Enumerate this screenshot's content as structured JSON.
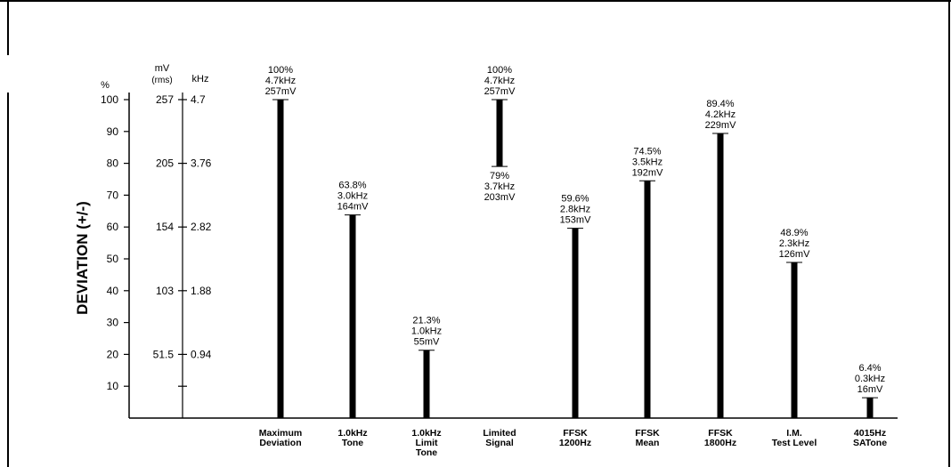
{
  "chart_data": {
    "type": "bar",
    "ylabel": "DEVIATION (+/-)",
    "ylim": [
      0,
      100
    ],
    "y_ticks": [
      10,
      20,
      30,
      40,
      50,
      60,
      70,
      80,
      90,
      100
    ],
    "axis_headers": {
      "percent": "%",
      "mv": "mV",
      "mv_sub": "(rms)",
      "khz": "kHz"
    },
    "secondary_scales": [
      {
        "pct": 100,
        "mv": "257",
        "khz": "4.7"
      },
      {
        "pct": 80,
        "mv": "205",
        "khz": "3.76"
      },
      {
        "pct": 60,
        "mv": "154",
        "khz": "2.82"
      },
      {
        "pct": 40,
        "mv": "103",
        "khz": "1.88"
      },
      {
        "pct": 20,
        "mv": "51.5",
        "khz": "0.94"
      }
    ],
    "extra_scale_ticks": [
      10
    ],
    "bars": [
      {
        "category": [
          "Maximum",
          "Deviation"
        ],
        "top": 100,
        "bottom": 0,
        "label_top": [
          "100%",
          "4.7kHz",
          "257mV"
        ]
      },
      {
        "category": [
          "1.0kHz",
          "Tone"
        ],
        "top": 63.8,
        "bottom": 0,
        "label_top": [
          "63.8%",
          "3.0kHz",
          "164mV"
        ]
      },
      {
        "category": [
          "1.0kHz",
          "Limit",
          "Tone"
        ],
        "top": 21.3,
        "bottom": 0,
        "label_top": [
          "21.3%",
          "1.0kHz",
          "55mV"
        ]
      },
      {
        "category": [
          "Limited",
          "Signal"
        ],
        "top": 100,
        "bottom": 79,
        "label_top": [
          "100%",
          "4.7kHz",
          "257mV"
        ],
        "label_bottom": [
          "79%",
          "3.7kHz",
          "203mV"
        ]
      },
      {
        "category": [
          "FFSK",
          "1200Hz"
        ],
        "top": 59.6,
        "bottom": 0,
        "label_top": [
          "59.6%",
          "2.8kHz",
          "153mV"
        ]
      },
      {
        "category": [
          "FFSK",
          "Mean"
        ],
        "top": 74.5,
        "bottom": 0,
        "label_top": [
          "74.5%",
          "3.5kHz",
          "192mV"
        ]
      },
      {
        "category": [
          "FFSK",
          "1800Hz"
        ],
        "top": 89.4,
        "bottom": 0,
        "label_top": [
          "89.4%",
          "4.2kHz",
          "229mV"
        ]
      },
      {
        "category": [
          "I.M.",
          "Test Level"
        ],
        "top": 48.9,
        "bottom": 0,
        "label_top": [
          "48.9%",
          "2.3kHz",
          "126mV"
        ]
      },
      {
        "category": [
          "4015Hz",
          "SATone"
        ],
        "top": 6.4,
        "bottom": 0,
        "label_top": [
          "6.4%",
          "0.3kHz",
          "16mV"
        ]
      }
    ]
  }
}
